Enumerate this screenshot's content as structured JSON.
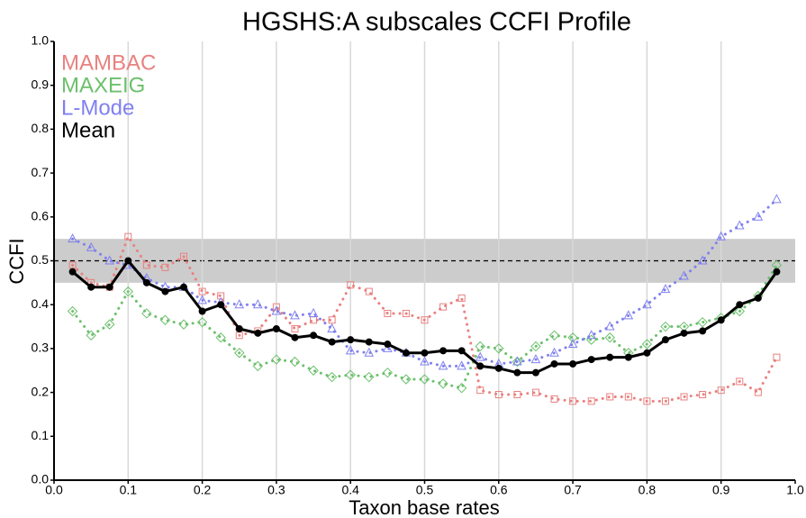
{
  "chart_data": {
    "type": "line",
    "title": "HGSHS:A subscales CCFI Profile",
    "x_label": "Taxon base rates",
    "y_label": "CCFI",
    "x": [
      0.025,
      0.05,
      0.075,
      0.1,
      0.125,
      0.15,
      0.175,
      0.2,
      0.225,
      0.25,
      0.275,
      0.3,
      0.325,
      0.35,
      0.375,
      0.4,
      0.425,
      0.45,
      0.475,
      0.5,
      0.525,
      0.55,
      0.575,
      0.6,
      0.625,
      0.65,
      0.675,
      0.7,
      0.725,
      0.75,
      0.775,
      0.8,
      0.825,
      0.85,
      0.875,
      0.9,
      0.925,
      0.95,
      0.975
    ],
    "series": [
      {
        "name": "MAMBAC",
        "color": "#e8817f",
        "marker": "square",
        "line_style": "dotted",
        "values": [
          0.49,
          0.45,
          0.44,
          0.555,
          0.49,
          0.485,
          0.51,
          0.43,
          0.42,
          0.33,
          0.34,
          0.395,
          0.345,
          0.365,
          0.365,
          0.445,
          0.43,
          0.38,
          0.38,
          0.365,
          0.395,
          0.415,
          0.205,
          0.195,
          0.195,
          0.2,
          0.185,
          0.18,
          0.18,
          0.19,
          0.19,
          0.18,
          0.18,
          0.19,
          0.195,
          0.205,
          0.225,
          0.2,
          0.28
        ]
      },
      {
        "name": "MAXEIG",
        "color": "#6cc06c",
        "marker": "diamond",
        "line_style": "dotted",
        "values": [
          0.385,
          0.33,
          0.355,
          0.43,
          0.38,
          0.365,
          0.355,
          0.36,
          0.325,
          0.29,
          0.26,
          0.275,
          0.27,
          0.25,
          0.235,
          0.24,
          0.235,
          0.245,
          0.23,
          0.23,
          0.22,
          0.21,
          0.305,
          0.3,
          0.27,
          0.305,
          0.33,
          0.325,
          0.32,
          0.325,
          0.29,
          0.31,
          0.35,
          0.35,
          0.36,
          0.37,
          0.385,
          0.42,
          0.49
        ]
      },
      {
        "name": "L-Mode",
        "color": "#8080f0",
        "marker": "triangle",
        "line_style": "dotted",
        "values": [
          0.55,
          0.53,
          0.5,
          0.49,
          0.46,
          0.44,
          0.44,
          0.41,
          0.405,
          0.4,
          0.4,
          0.385,
          0.375,
          0.38,
          0.345,
          0.295,
          0.29,
          0.3,
          0.29,
          0.27,
          0.26,
          0.26,
          0.28,
          0.265,
          0.27,
          0.275,
          0.29,
          0.31,
          0.33,
          0.35,
          0.375,
          0.4,
          0.435,
          0.465,
          0.5,
          0.555,
          0.58,
          0.6,
          0.64
        ]
      },
      {
        "name": "Mean",
        "color": "#000000",
        "marker": "circle",
        "line_style": "solid",
        "values": [
          0.475,
          0.44,
          0.44,
          0.5,
          0.45,
          0.43,
          0.44,
          0.385,
          0.4,
          0.345,
          0.335,
          0.345,
          0.325,
          0.33,
          0.315,
          0.32,
          0.315,
          0.31,
          0.29,
          0.29,
          0.295,
          0.295,
          0.26,
          0.255,
          0.245,
          0.245,
          0.265,
          0.265,
          0.275,
          0.28,
          0.28,
          0.29,
          0.32,
          0.335,
          0.34,
          0.365,
          0.4,
          0.415,
          0.475
        ]
      }
    ],
    "band": [
      0.45,
      0.55
    ],
    "band_color": "#cccccc",
    "reference_line": 0.5,
    "xlim": [
      0,
      1
    ],
    "ylim": [
      0,
      1
    ],
    "xticks": [
      {
        "value": 0,
        "label": "0.0"
      },
      0.1,
      0.2,
      0.3,
      0.4,
      0.5,
      0.6,
      0.7,
      0.8,
      0.9,
      {
        "value": 1,
        "label": "1.0"
      }
    ],
    "yticks": [
      {
        "value": 0,
        "label": "0.0"
      },
      0.1,
      0.2,
      0.3,
      0.4,
      0.5,
      0.6,
      0.7,
      0.8,
      0.9,
      {
        "value": 1,
        "label": "1.0"
      }
    ],
    "grid": "x",
    "legend": "top-left"
  }
}
